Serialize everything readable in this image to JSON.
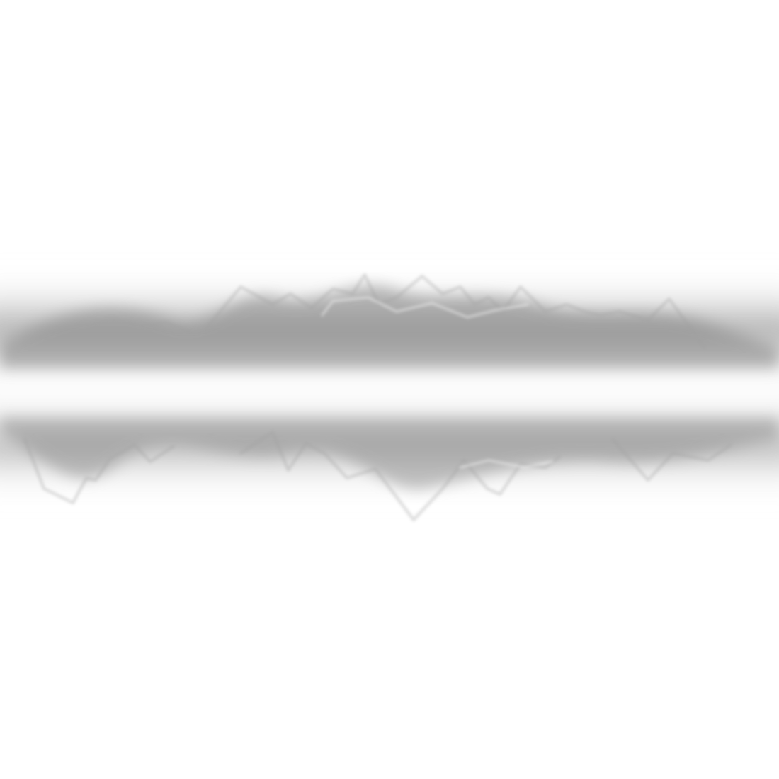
{
  "scene": {
    "description_visible_text": "",
    "colors": {
      "background": "#ffffff",
      "band": "#9a9a9a",
      "line": "#a8a8a8",
      "highlight": "#f2f2f2"
    }
  }
}
